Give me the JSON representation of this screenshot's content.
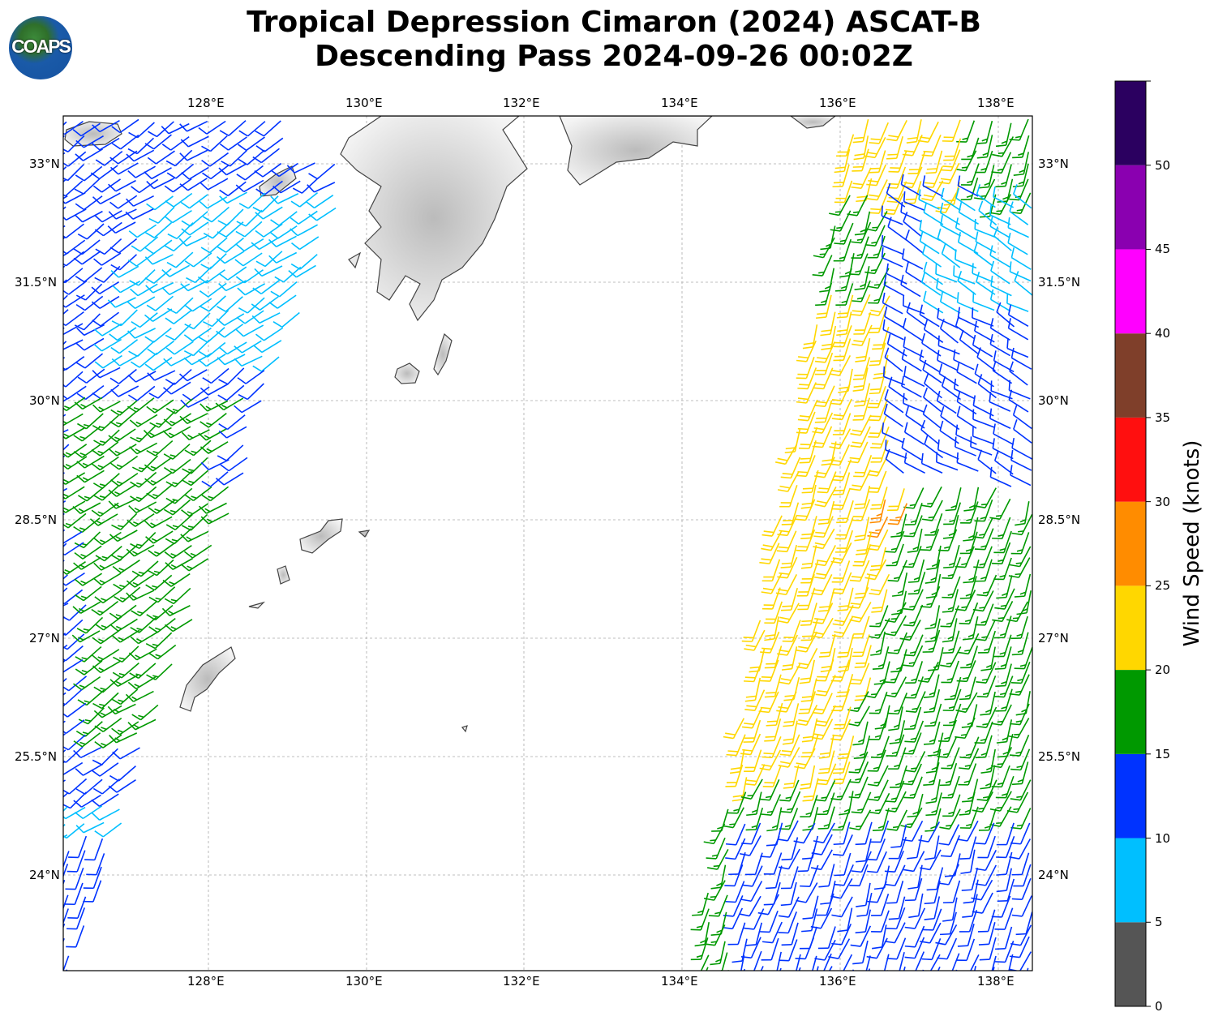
{
  "title": {
    "line1": "Tropical Depression Cimaron (2024) ASCAT-B",
    "line2": "Descending Pass 2024-09-26 00:02Z"
  },
  "logo": {
    "text": "COAPS"
  },
  "map": {
    "lon_ticks": [
      "128°E",
      "130°E",
      "132°E",
      "134°E",
      "136°E",
      "138°E"
    ],
    "lat_ticks": [
      "33°N",
      "31.5°N",
      "30°N",
      "28.5°N",
      "27°N",
      "25.5°N",
      "24°N"
    ]
  },
  "colorbar": {
    "label": "Wind Speed (knots)",
    "ticks": [
      "0",
      "5",
      "10",
      "15",
      "20",
      "25",
      "30",
      "35",
      "40",
      "45",
      "50"
    ],
    "colors": [
      "#555555",
      "#00bfff",
      "#0033ff",
      "#009900",
      "#ffd700",
      "#ff8c00",
      "#ff0f0f",
      "#7f3f2a",
      "#ff00ff",
      "#8a00b0",
      "#2b0060"
    ]
  }
}
